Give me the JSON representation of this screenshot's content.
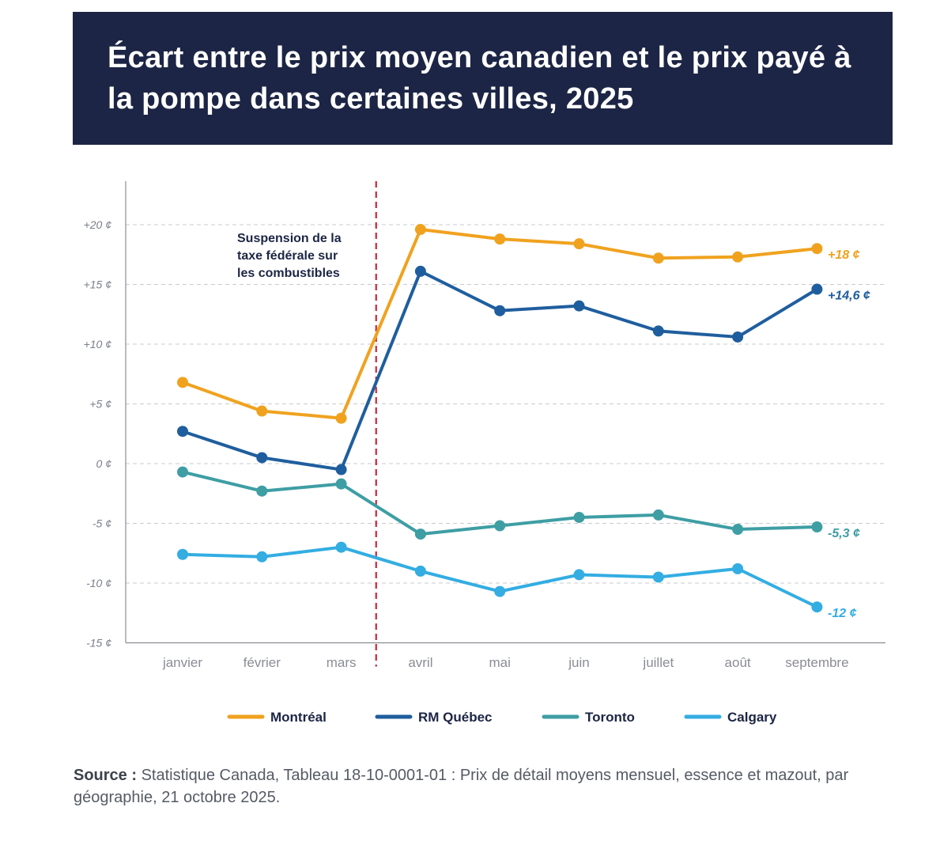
{
  "title": "Écart entre le prix moyen canadien et le prix payé à la pompe dans certaines villes, 2025",
  "source": {
    "label": "Source :",
    "text": "Statistique Canada, Tableau 18-10-0001-01 : Prix de détail moyens mensuel, essence et mazout, par géographie, 21 octobre 2025."
  },
  "chart_data": {
    "type": "line",
    "title": "Écart entre le prix moyen canadien et le prix payé à la pompe dans certaines villes, 2025",
    "xlabel": "",
    "ylabel": "",
    "ylim": [
      -15,
      23
    ],
    "yticks": [
      20,
      15,
      10,
      5,
      0,
      -5,
      -10,
      -15
    ],
    "ytick_labels": [
      "+20 ¢",
      "+15 ¢",
      "+10 ¢",
      "+5 ¢",
      "0 ¢",
      "-5 ¢",
      "-10 ¢",
      "-15 ¢"
    ],
    "grid": true,
    "categories": [
      "janvier",
      "février",
      "mars",
      "avril",
      "mai",
      "juin",
      "juillet",
      "août",
      "septembre"
    ],
    "series": [
      {
        "name": "Montréal",
        "color": "#f0a21f",
        "values": [
          6.8,
          4.4,
          3.8,
          19.6,
          18.8,
          18.4,
          17.2,
          17.3,
          18.0
        ],
        "end_label": "+18 ¢"
      },
      {
        "name": "RM Québec",
        "color": "#1f5e9e",
        "values": [
          2.7,
          0.5,
          -0.5,
          16.1,
          12.8,
          13.2,
          11.1,
          10.6,
          14.6
        ],
        "end_label": "+14,6 ¢"
      },
      {
        "name": "Toronto",
        "color": "#3e9ea4",
        "values": [
          -0.7,
          -2.3,
          -1.7,
          -5.9,
          -5.2,
          -4.5,
          -4.3,
          -5.5,
          -5.3
        ],
        "end_label": "-5,3 ¢"
      },
      {
        "name": "Calgary",
        "color": "#33ade2",
        "values": [
          -7.6,
          -7.8,
          -7.0,
          -9.0,
          -10.7,
          -9.3,
          -9.5,
          -8.8,
          -12.0
        ],
        "end_label": "-12 ¢"
      }
    ],
    "annotation": {
      "lines": [
        "Suspension de la",
        "taxe fédérale sur",
        "les combustibles"
      ],
      "marker_between": [
        "mars",
        "avril"
      ],
      "marker_color": "#c8283a"
    },
    "legend_position": "bottom"
  }
}
